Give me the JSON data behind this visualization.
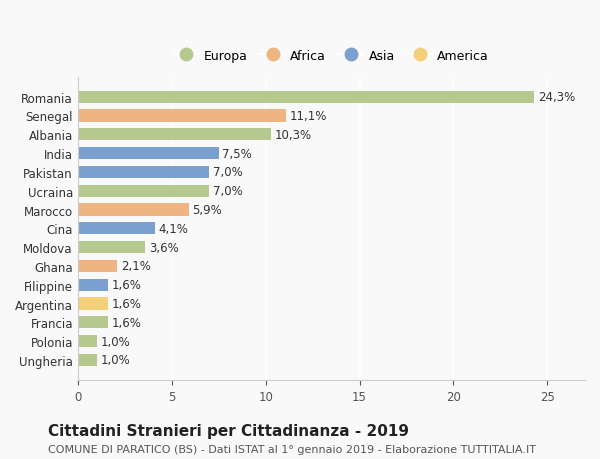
{
  "countries": [
    "Romania",
    "Senegal",
    "Albania",
    "India",
    "Pakistan",
    "Ucraina",
    "Marocco",
    "Cina",
    "Moldova",
    "Ghana",
    "Filippine",
    "Argentina",
    "Francia",
    "Polonia",
    "Ungheria"
  ],
  "values": [
    24.3,
    11.1,
    10.3,
    7.5,
    7.0,
    7.0,
    5.9,
    4.1,
    3.6,
    2.1,
    1.6,
    1.6,
    1.6,
    1.0,
    1.0
  ],
  "labels": [
    "24,3%",
    "11,1%",
    "10,3%",
    "7,5%",
    "7,0%",
    "7,0%",
    "5,9%",
    "4,1%",
    "3,6%",
    "2,1%",
    "1,6%",
    "1,6%",
    "1,6%",
    "1,0%",
    "1,0%"
  ],
  "regions": [
    "Europa",
    "Africa",
    "Europa",
    "Asia",
    "Asia",
    "Europa",
    "Africa",
    "Asia",
    "Europa",
    "Africa",
    "Asia",
    "America",
    "Europa",
    "Europa",
    "Europa"
  ],
  "region_colors": {
    "Europa": "#b5c98e",
    "Africa": "#f0b482",
    "Asia": "#7b9fce",
    "America": "#f5d07a"
  },
  "legend_order": [
    "Europa",
    "Africa",
    "Asia",
    "America"
  ],
  "title": "Cittadini Stranieri per Cittadinanza - 2019",
  "subtitle": "COMUNE DI PARATICO (BS) - Dati ISTAT al 1° gennaio 2019 - Elaborazione TUTTITALIA.IT",
  "xlim": [
    0,
    27
  ],
  "xticks": [
    0,
    5,
    10,
    15,
    20,
    25
  ],
  "background_color": "#f9f9f9",
  "grid_color": "#ffffff",
  "title_fontsize": 11,
  "subtitle_fontsize": 8,
  "label_fontsize": 8.5,
  "tick_fontsize": 8.5
}
